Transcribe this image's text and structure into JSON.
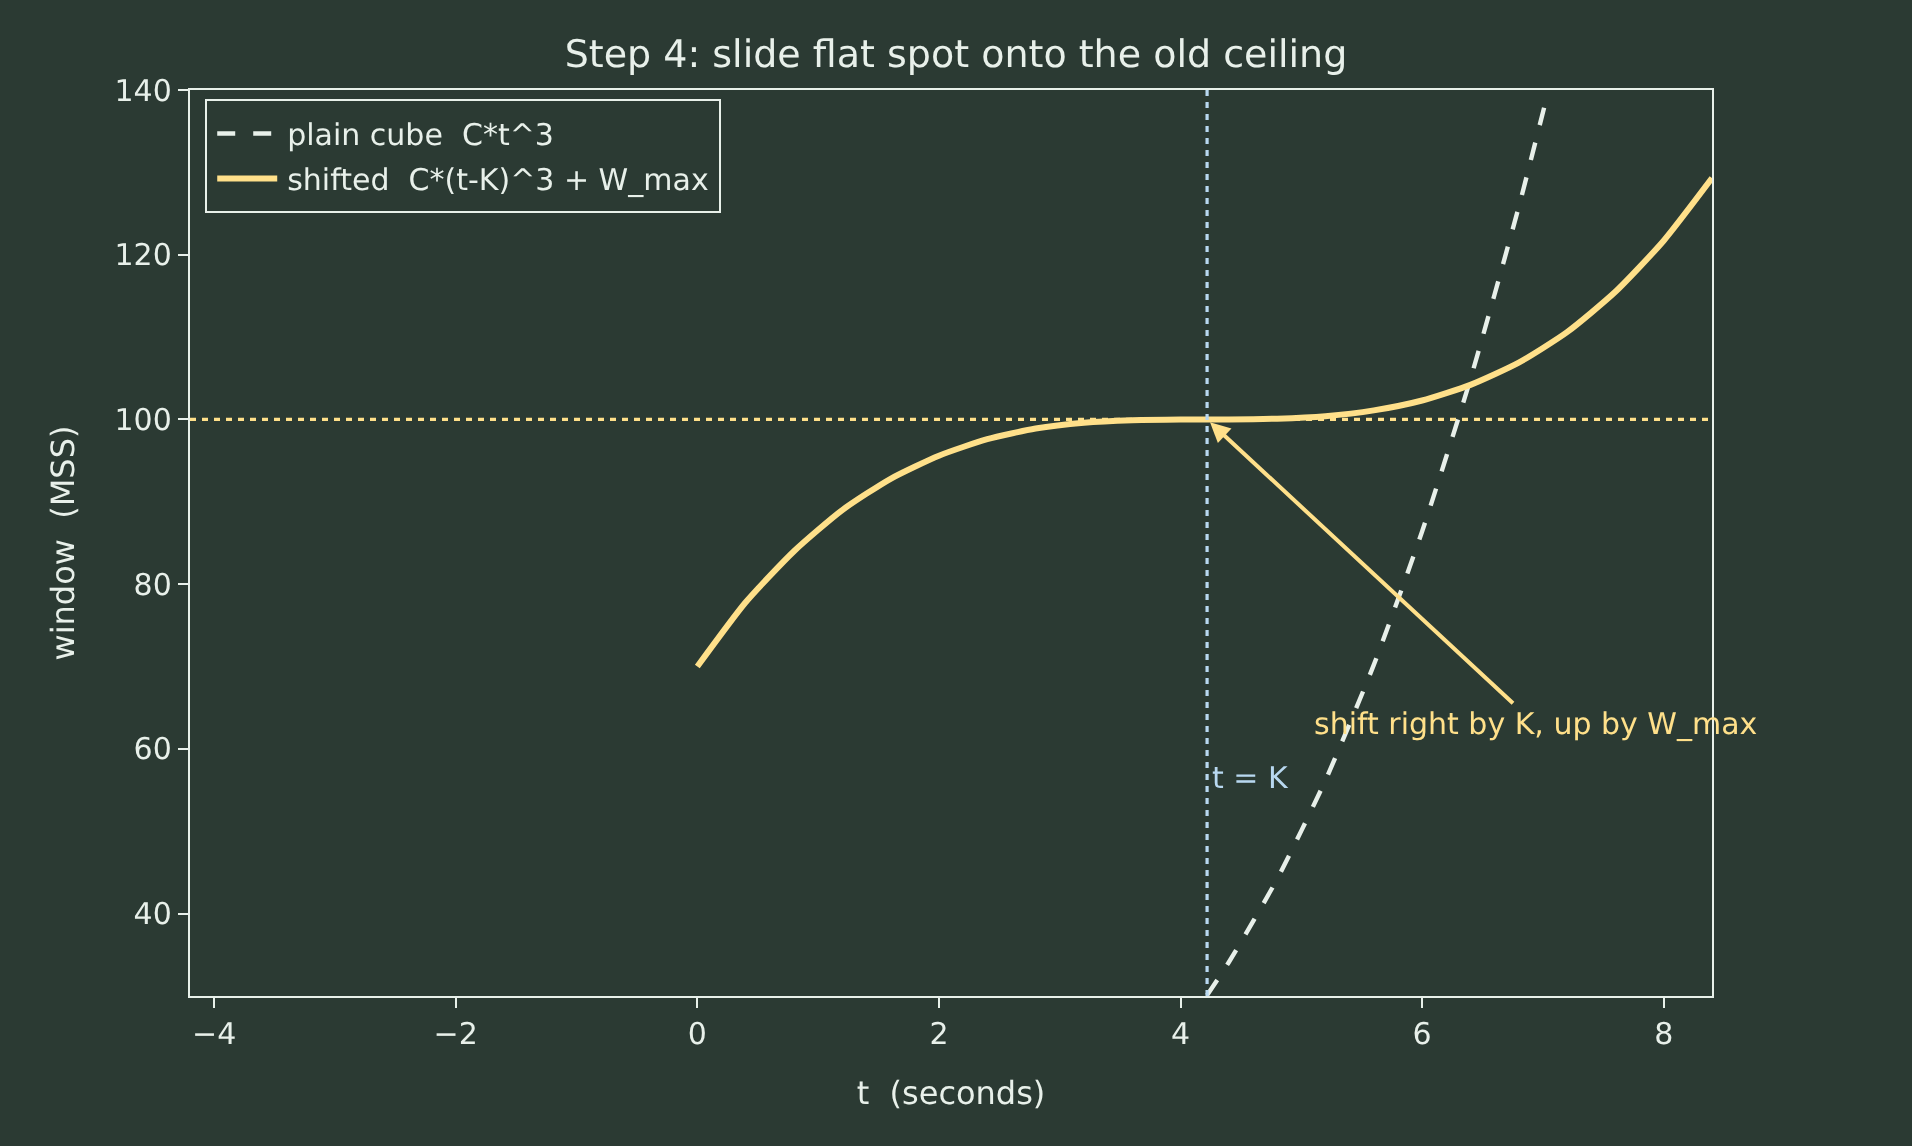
{
  "chart_data": {
    "type": "line",
    "title": "Step 4: slide flat spot onto the old ceiling",
    "xlabel": "t  (seconds)",
    "ylabel": "window  (MSS)",
    "xlim": [
      -4.2,
      8.4
    ],
    "xticks": [
      {
        "value": -4,
        "label": "−4"
      },
      {
        "value": -2,
        "label": "−2"
      },
      0,
      2,
      4,
      6,
      8
    ],
    "ylim": [
      30,
      140
    ],
    "yticks": [
      40,
      60,
      80,
      100,
      120,
      140
    ],
    "grid": false,
    "legend": "top left",
    "series": [
      {
        "name": "plain cube  C*t^3",
        "color": "#e8f0ea",
        "line_style": "dashed",
        "x": [
          4.22,
          4.4,
          4.8,
          5.2,
          5.6,
          6.0,
          6.4,
          6.8,
          7.04
        ],
        "values": [
          30.1,
          34.1,
          44.2,
          56.2,
          70.2,
          86.4,
          104.9,
          125.8,
          139.6
        ]
      },
      {
        "name": "shifted  C*(t-K)^3 + W_max",
        "color": "#ffe08a",
        "line_style": "solid",
        "x": [
          0,
          0.4,
          0.8,
          1.2,
          1.6,
          2.0,
          2.4,
          2.8,
          3.2,
          3.6,
          4.0,
          4.4,
          4.8,
          5.2,
          5.6,
          6.0,
          6.4,
          6.8,
          7.2,
          7.6,
          8.0,
          8.4
        ],
        "values": [
          70.0,
          77.8,
          84.0,
          89.0,
          92.8,
          95.6,
          97.6,
          98.9,
          99.6,
          99.9,
          100.0,
          100.0,
          100.1,
          100.4,
          101.1,
          102.3,
          104.2,
          106.9,
          110.6,
          115.5,
          121.7,
          129.3
        ]
      }
    ],
    "ref_lines": [
      {
        "axis": "y",
        "value": 100,
        "color": "#ffe08a",
        "line_style": "dotted"
      },
      {
        "axis": "x",
        "value": 4.22,
        "label": "t = K",
        "color": "#b8d8f0",
        "line_style": "dotted"
      }
    ],
    "annotations": [
      {
        "text": "shift right by K, up by W_max",
        "x": 4.22,
        "y": 100
      }
    ]
  }
}
